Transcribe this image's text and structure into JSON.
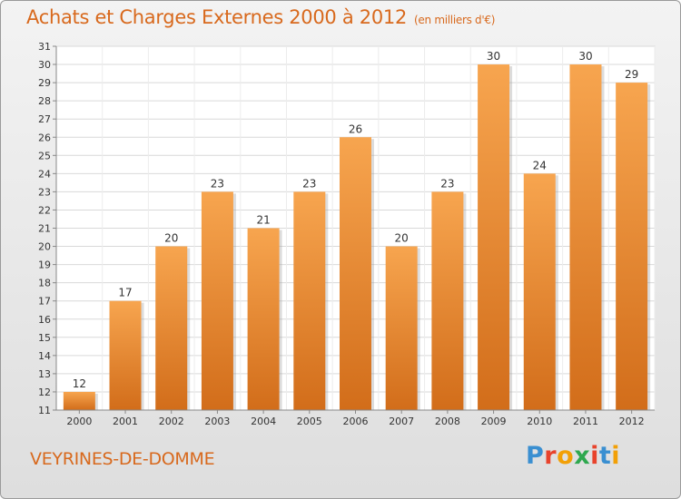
{
  "title": "Achats et Charges Externes 2000 à 2012",
  "unit": "(en milliers d'€)",
  "city": "VEYRINES-DE-DOMME",
  "logo": {
    "letters": [
      "P",
      "r",
      "o",
      "x",
      "i",
      "t",
      "i"
    ],
    "colors": [
      "#3a8fd1",
      "#e8432c",
      "#f2a007",
      "#2fa84f",
      "#e8432c",
      "#3a8fd1",
      "#f2a007"
    ]
  },
  "colors": {
    "bar_top": "#f7a54f",
    "bar_bottom": "#d26d1a",
    "text": "#d8691d"
  },
  "chart_data": {
    "type": "bar",
    "categories": [
      "2000",
      "2001",
      "2002",
      "2003",
      "2004",
      "2005",
      "2006",
      "2007",
      "2008",
      "2009",
      "2010",
      "2011",
      "2012"
    ],
    "values": [
      12,
      17,
      20,
      23,
      21,
      23,
      26,
      20,
      23,
      30,
      24,
      30,
      29
    ],
    "ylim": [
      11,
      31
    ],
    "yticks": [
      11,
      12,
      13,
      14,
      15,
      16,
      17,
      18,
      19,
      20,
      21,
      22,
      23,
      24,
      25,
      26,
      27,
      28,
      29,
      30,
      31
    ],
    "grid": true,
    "data_labels": true
  }
}
